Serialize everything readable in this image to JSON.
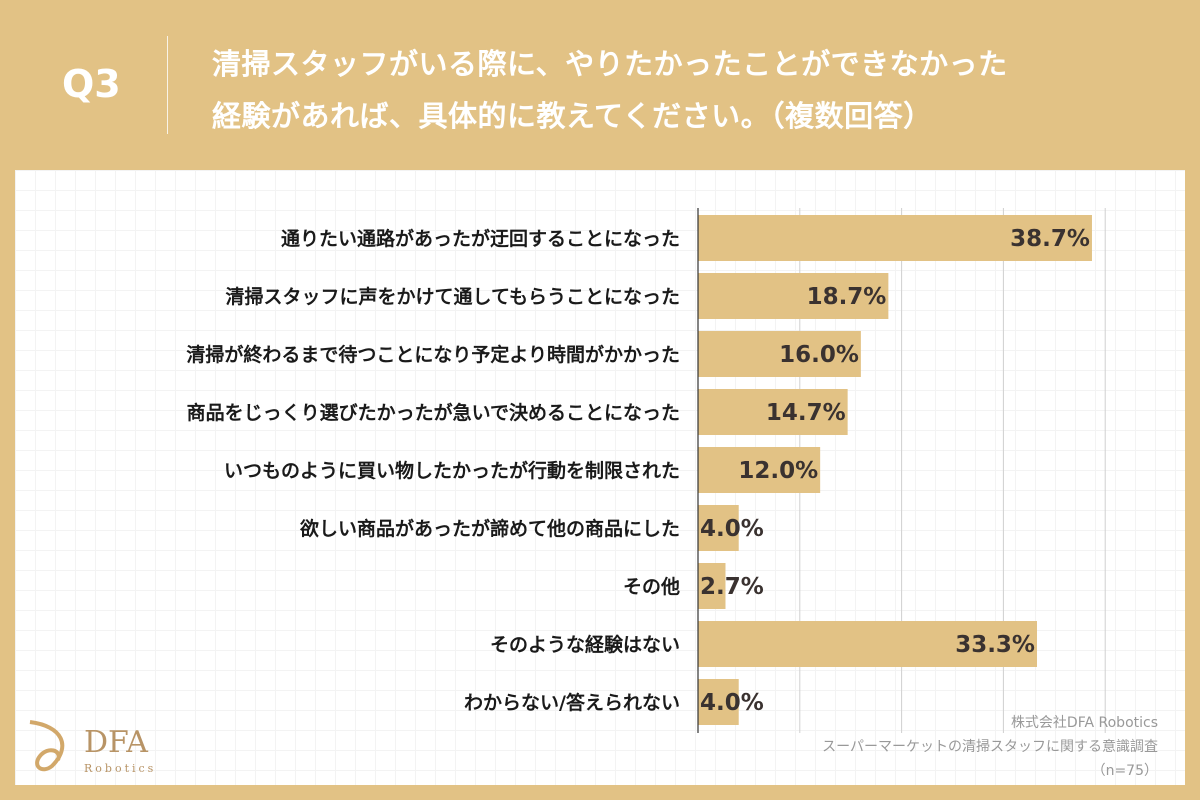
{
  "header": {
    "q_label": "Q3",
    "title_line1": "清掃スタッフがいる際に、やりたかったことができなかった",
    "title_line2": "経験があれば、具体的に教えてください。（複数回答）"
  },
  "footer": {
    "company": "株式会社DFA Robotics",
    "survey": "スーパーマーケットの清掃スタッフに関する意識調査",
    "n": "（n=75）"
  },
  "logo": {
    "text": "DFA",
    "sub": "Robotics"
  },
  "colors": {
    "background": "#E2C285",
    "bar": "#E2C285"
  },
  "chart_data": {
    "type": "bar",
    "orientation": "horizontal",
    "unit": "%",
    "categories": [
      "通りたい通路があったが迂回することになった",
      "清掃スタッフに声をかけて通してもらうことになった",
      "清掃が終わるまで待つことになり予定より時間がかかった",
      "商品をじっくり選びたかったが急いで決めることになった",
      "いつものように買い物したかったが行動を制限された",
      "欲しい商品があったが諦めて他の商品にした",
      "その他",
      "そのような経験はない",
      "わからない/答えられない"
    ],
    "values": [
      38.7,
      18.7,
      16.0,
      14.7,
      12.0,
      4.0,
      2.7,
      33.3,
      4.0
    ],
    "value_labels": [
      "38.7%",
      "18.7%",
      "16.0%",
      "14.7%",
      "12.0%",
      "4.0%",
      "2.7%",
      "33.3%",
      "4.0%"
    ],
    "xlim": [
      0,
      40
    ],
    "grid": true
  }
}
